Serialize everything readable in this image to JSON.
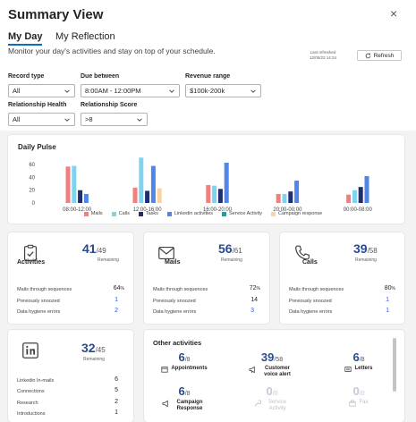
{
  "header": {
    "title": "Summary View",
    "close": "×"
  },
  "tabs": [
    {
      "label": "My Day"
    },
    {
      "label": "My Reflection"
    }
  ],
  "subtitle": "Monitor your day's activities and stay on top of your schedule.",
  "refresh": {
    "meta_label": "Last refreshed",
    "meta_time": "12/05/22 14:24",
    "button": "Refresh"
  },
  "filters": {
    "record_type": {
      "label": "Record type",
      "value": "All"
    },
    "due_between": {
      "label": "Due between",
      "value": "8:00AM - 12:00PM"
    },
    "revenue_range": {
      "label": "Revenue range",
      "value": "$100k-200k"
    },
    "relationship_health": {
      "label": "Relationship Health",
      "value": "All"
    },
    "relationship_score": {
      "label": "Relationship Score",
      "value": ">8"
    }
  },
  "chart_data": {
    "type": "bar",
    "title": "Daily Pulse",
    "categories": [
      "08:00-12:00",
      "12:00-16:00",
      "16:00-20:00",
      "20:00-00:00",
      "00:00-08:00"
    ],
    "yticks": [
      0,
      20,
      40,
      60
    ],
    "ylim": [
      0,
      70
    ],
    "legend_position": "bottom",
    "series": [
      {
        "name": "Mails",
        "color": "#f08080",
        "values": [
          57,
          24,
          28,
          14,
          13
        ]
      },
      {
        "name": "Calls",
        "color": "#7fd3ef",
        "values": [
          58,
          71,
          27,
          14,
          20
        ]
      },
      {
        "name": "Tasks",
        "color": "#1f2f6e",
        "values": [
          20,
          19,
          22,
          18,
          25
        ]
      },
      {
        "name": "Linkedin activities",
        "color": "#4f86e8",
        "values": [
          14,
          58,
          63,
          35,
          42
        ]
      },
      {
        "name": "Service Activity",
        "color": "#19a39a",
        "values": [
          0,
          0,
          0,
          0,
          0
        ]
      },
      {
        "name": "Campaign response",
        "color": "#f8d3a6",
        "values": [
          0,
          23,
          0,
          0,
          0
        ]
      }
    ]
  },
  "activities": {
    "name": "Activities",
    "count": "41",
    "total": "/49",
    "remaining": "Remaining",
    "rows": [
      {
        "label": "Mails through sequences",
        "value": "64",
        "unit": "%"
      },
      {
        "label": "Previously snoozed",
        "value": "1",
        "unit": ""
      },
      {
        "label": "Data hygiene errors",
        "value": "2",
        "unit": ""
      }
    ]
  },
  "mails": {
    "name": "Mails",
    "count": "56",
    "total": "/61",
    "remaining": "Remaining",
    "rows": [
      {
        "label": "Mails through sequences",
        "value": "72",
        "unit": "%"
      },
      {
        "label": "Previously snoozed",
        "value": "14",
        "unit": ""
      },
      {
        "label": "Data hygiene errors",
        "value": "3",
        "unit": ""
      }
    ]
  },
  "calls": {
    "name": "Calls",
    "count": "39",
    "total": "/58",
    "remaining": "Remaining",
    "rows": [
      {
        "label": "Mails through sequences",
        "value": "80",
        "unit": "%"
      },
      {
        "label": "Previously snoozed",
        "value": "1",
        "unit": ""
      },
      {
        "label": "Data hygiene errors",
        "value": "1",
        "unit": ""
      }
    ]
  },
  "linkedin": {
    "count": "32",
    "total": "/45",
    "remaining": "Remaining",
    "rows": [
      {
        "label": "Linkedin In-mails",
        "value": "6"
      },
      {
        "label": "Connections",
        "value": "5"
      },
      {
        "label": "Research",
        "value": "2"
      },
      {
        "label": "Introductions",
        "value": "1"
      }
    ]
  },
  "other_activities": {
    "title": "Other activities",
    "items": [
      {
        "count": "6",
        "total": "/8",
        "label": "Appointments"
      },
      {
        "count": "39",
        "total": "/58",
        "label": "Customer voice alert"
      },
      {
        "count": "6",
        "total": "/8",
        "label": "Letters"
      },
      {
        "count": "6",
        "total": "/8",
        "label": "Campaign Response"
      },
      {
        "count": "0",
        "total": "/0",
        "label": "Service Activity"
      },
      {
        "count": "0",
        "total": "/0",
        "label": "Fax"
      }
    ]
  }
}
